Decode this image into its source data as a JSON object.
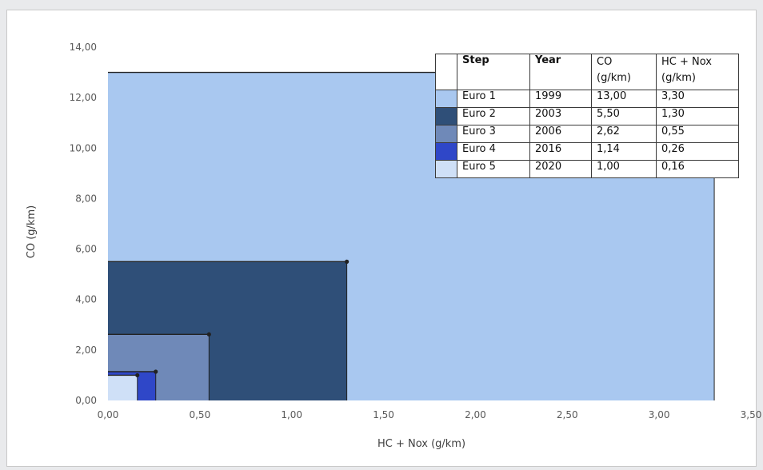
{
  "chart_data": {
    "type": "area",
    "subtype": "nested-rectangles",
    "xlabel": "HC + Nox (g/km)",
    "ylabel": "CO (g/km)",
    "xlim": [
      0,
      3.5
    ],
    "ylim": [
      0,
      14
    ],
    "xticks": [
      "0,00",
      "0,50",
      "1,00",
      "1,50",
      "2,00",
      "2,50",
      "3,00",
      "3,50"
    ],
    "yticks": [
      "0,00",
      "2,00",
      "4,00",
      "6,00",
      "8,00",
      "10,00",
      "12,00",
      "14,00"
    ],
    "grid": false,
    "series": [
      {
        "step": "Euro 1",
        "year": "1999",
        "co": 13.0,
        "hc_nox": 3.3,
        "co_label": "13,00",
        "hc_label": "3,30",
        "color": "#a9c8f0"
      },
      {
        "step": "Euro 2",
        "year": "2003",
        "co": 5.5,
        "hc_nox": 1.3,
        "co_label": "5,50",
        "hc_label": "1,30",
        "color": "#2f4f78"
      },
      {
        "step": "Euro 3",
        "year": "2006",
        "co": 2.62,
        "hc_nox": 0.55,
        "co_label": "2,62",
        "hc_label": "0,55",
        "color": "#6f89b8"
      },
      {
        "step": "Euro 4",
        "year": "2016",
        "co": 1.14,
        "hc_nox": 0.26,
        "co_label": "1,14",
        "hc_label": "0,26",
        "color": "#2f47c8"
      },
      {
        "step": "Euro 5",
        "year": "2020",
        "co": 1.0,
        "hc_nox": 0.16,
        "co_label": "1,00",
        "hc_label": "0,16",
        "color": "#cfe0f7"
      }
    ]
  },
  "table": {
    "headers": {
      "step": "Step",
      "year": "Year",
      "co": "CO\n(g/km)",
      "hc_nox": "HC + Nox\n(g/km)"
    }
  }
}
